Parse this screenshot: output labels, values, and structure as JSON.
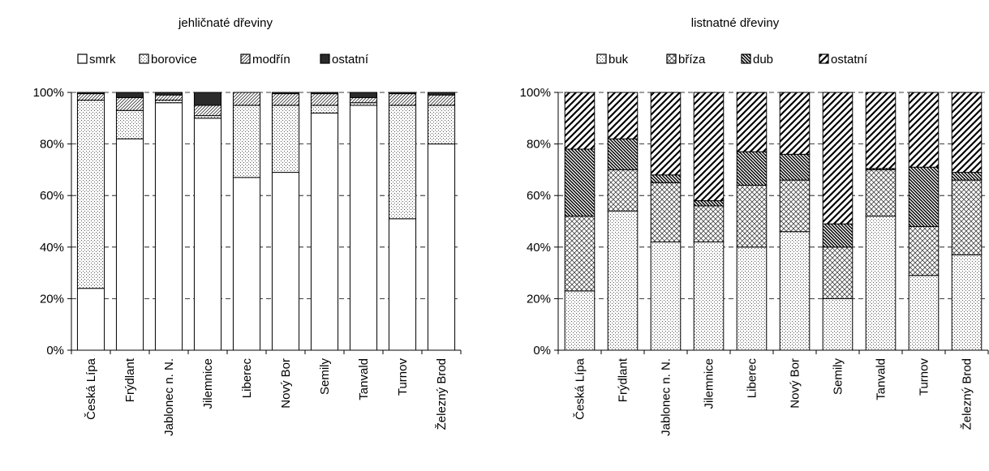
{
  "chart_data": [
    {
      "type": "bar",
      "stacked": true,
      "title": "jehličnaté dřeviny",
      "categories": [
        "Česká Lípa",
        "Frýdlant",
        "Jablonec n. N.",
        "Jilemnice",
        "Liberec",
        "Nový Bor",
        "Semily",
        "Tanvald",
        "Turnov",
        "Železný Brod"
      ],
      "series": [
        {
          "name": "smrk",
          "pattern": "white",
          "values": [
            24,
            82,
            96,
            90,
            67,
            69,
            92,
            95,
            51,
            80
          ]
        },
        {
          "name": "borovice",
          "pattern": "dots",
          "values": [
            73,
            11,
            1,
            1,
            28,
            26,
            3,
            1,
            44,
            15
          ]
        },
        {
          "name": "modřín",
          "pattern": "diag-light",
          "values": [
            2.5,
            5,
            2,
            4,
            5,
            4.5,
            4.5,
            2,
            4.5,
            4
          ]
        },
        {
          "name": "ostatní",
          "pattern": "black",
          "values": [
            0.5,
            2,
            1,
            5,
            0,
            0.5,
            0.5,
            2,
            0.5,
            1
          ]
        }
      ],
      "ylim": [
        0,
        100
      ],
      "yticks": [
        "0%",
        "20%",
        "40%",
        "60%",
        "80%",
        "100%"
      ],
      "legend_position": "top"
    },
    {
      "type": "bar",
      "stacked": true,
      "title": "listnatné dřeviny",
      "categories": [
        "Česká Lípa",
        "Frýdlant",
        "Jablonec n. N.",
        "Jilemnice",
        "Liberec",
        "Nový Bor",
        "Semily",
        "Tanvald",
        "Turnov",
        "Železný Brod"
      ],
      "series": [
        {
          "name": "buk",
          "pattern": "dots",
          "values": [
            23,
            54,
            42,
            42,
            40,
            46,
            20,
            52,
            29,
            37
          ]
        },
        {
          "name": "bříza",
          "pattern": "crosshatch",
          "values": [
            29,
            16,
            23,
            14,
            24,
            20,
            20,
            18,
            19,
            29
          ]
        },
        {
          "name": "dub",
          "pattern": "diag-dark",
          "values": [
            26,
            12,
            3,
            2,
            13,
            10,
            9,
            0.5,
            23,
            3
          ]
        },
        {
          "name": "ostatní",
          "pattern": "diag-bold",
          "values": [
            22,
            18,
            32,
            42,
            23,
            24,
            51,
            29.5,
            29,
            31
          ]
        }
      ],
      "ylim": [
        0,
        100
      ],
      "yticks": [
        "0%",
        "20%",
        "40%",
        "60%",
        "80%",
        "100%"
      ],
      "legend_position": "top"
    }
  ]
}
